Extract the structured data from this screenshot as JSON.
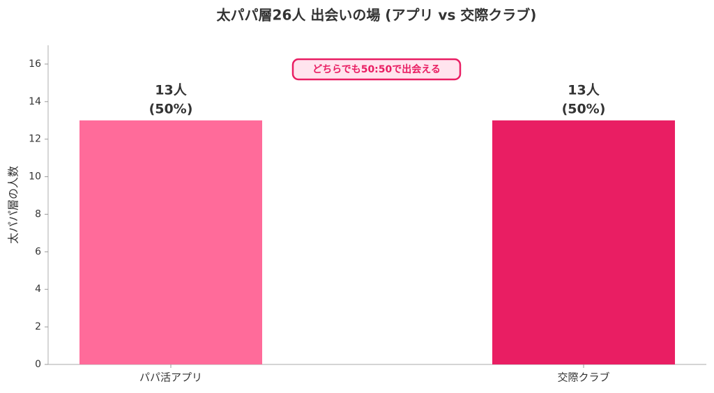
{
  "chart_data": {
    "type": "bar",
    "title": "太パパ層26人 出会いの場 (アプリ vs 交際クラブ)",
    "ylabel": "太パパ層の人数",
    "categories": [
      "パパ活アプリ",
      "交際クラブ"
    ],
    "values": [
      13,
      13
    ],
    "value_labels": [
      [
        "13人",
        "(50%)"
      ],
      [
        "13人",
        "(50%)"
      ]
    ],
    "colors": [
      "#ff6b9a",
      "#e91e63"
    ],
    "annotation": "どちらでも50:50で出会える",
    "ylim": [
      0,
      17
    ],
    "yticks": [
      0,
      2,
      4,
      6,
      8,
      10,
      12,
      14,
      16
    ],
    "grid": false
  }
}
